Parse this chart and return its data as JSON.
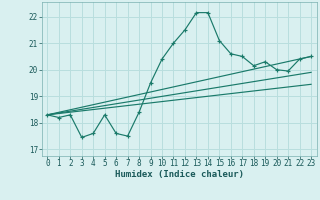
{
  "xlabel": "Humidex (Indice chaleur)",
  "bg_color": "#d9f0f0",
  "grid_color": "#b8dede",
  "line_color": "#1a7a6a",
  "xlim": [
    -0.5,
    23.5
  ],
  "ylim": [
    16.75,
    22.55
  ],
  "xticks": [
    0,
    1,
    2,
    3,
    4,
    5,
    6,
    7,
    8,
    9,
    10,
    11,
    12,
    13,
    14,
    15,
    16,
    17,
    18,
    19,
    20,
    21,
    22,
    23
  ],
  "yticks": [
    17,
    18,
    19,
    20,
    21,
    22
  ],
  "line1_x": [
    0,
    1,
    2,
    3,
    4,
    5,
    6,
    7,
    8,
    9,
    10,
    11,
    12,
    13,
    14,
    15,
    16,
    17,
    18,
    19,
    20,
    21,
    22,
    23
  ],
  "line1_y": [
    18.3,
    18.2,
    18.3,
    17.45,
    17.6,
    18.3,
    17.6,
    17.5,
    18.4,
    19.5,
    20.4,
    21.0,
    21.5,
    22.15,
    22.15,
    21.1,
    20.6,
    20.5,
    20.15,
    20.3,
    20.0,
    19.95,
    20.4,
    20.5
  ],
  "line2_x": [
    0,
    23
  ],
  "line2_y": [
    18.3,
    20.5
  ],
  "line3_x": [
    0,
    23
  ],
  "line3_y": [
    18.3,
    19.9
  ],
  "line4_x": [
    0,
    23
  ],
  "line4_y": [
    18.3,
    19.45
  ]
}
